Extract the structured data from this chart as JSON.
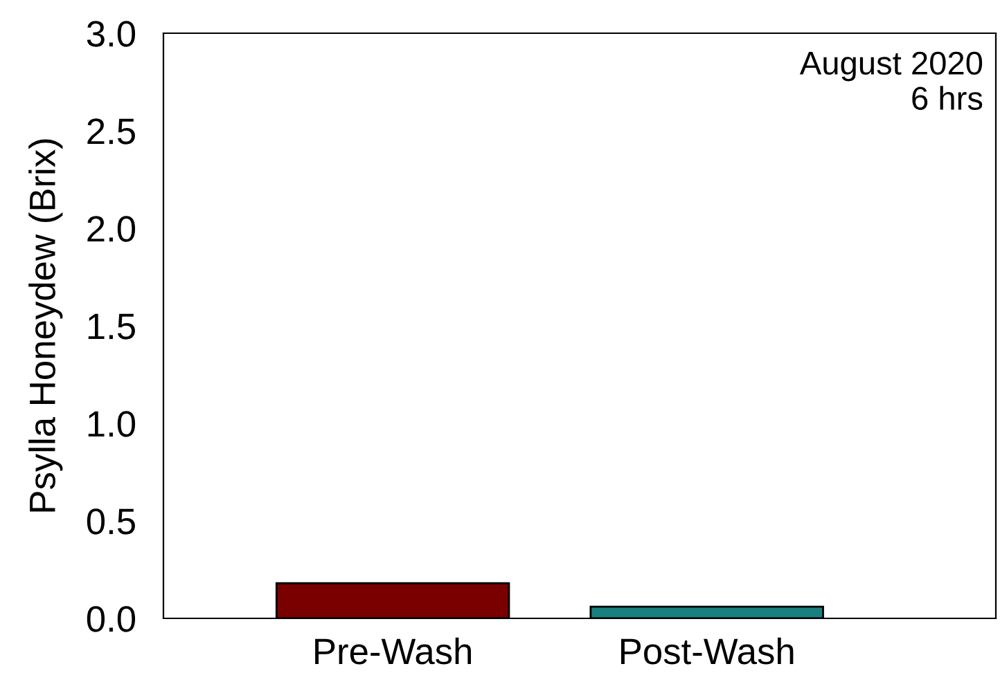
{
  "chart_data": {
    "type": "bar",
    "ylabel": "Psylla Honeydew (Brix)",
    "categories": [
      "Pre-Wash",
      "Post-Wash"
    ],
    "values": [
      0.18,
      0.06
    ],
    "colors": [
      "#7a0000",
      "#1a7f7f"
    ],
    "ylim": [
      0,
      3.0
    ],
    "yticks": [
      {
        "value": 0,
        "label": "0.0"
      },
      {
        "value": 0.5,
        "label": "0.5"
      },
      {
        "value": 1.0,
        "label": "1.0"
      },
      {
        "value": 1.5,
        "label": "1.5"
      },
      {
        "value": 2.0,
        "label": "2.0"
      },
      {
        "value": 2.5,
        "label": "2.5"
      },
      {
        "value": 3.0,
        "label": "3.0"
      }
    ],
    "annotations": [
      "August 2020\n6 hrs"
    ],
    "grid": false
  }
}
